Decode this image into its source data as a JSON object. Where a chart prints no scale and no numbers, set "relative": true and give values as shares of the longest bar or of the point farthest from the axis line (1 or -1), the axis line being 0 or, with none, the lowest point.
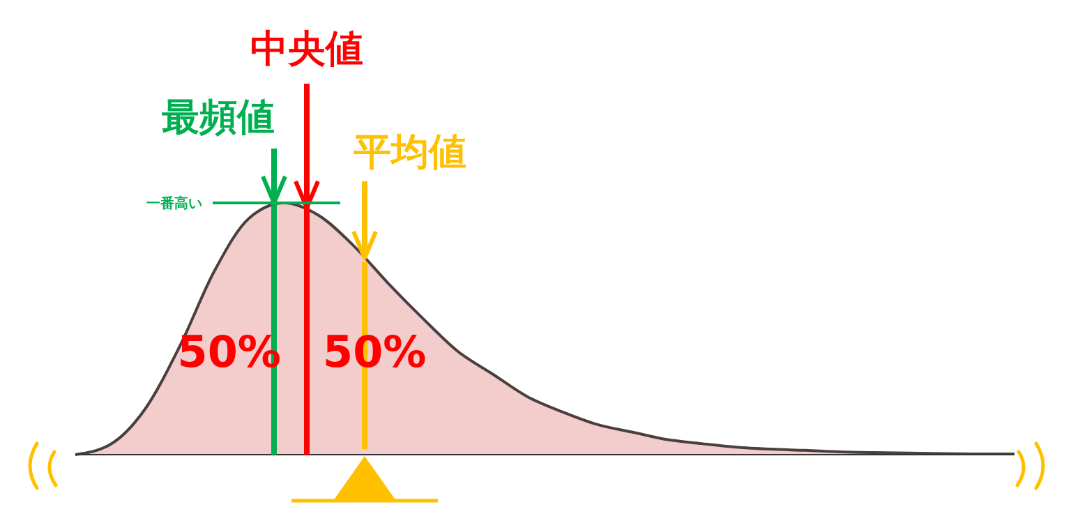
{
  "chart_data": {
    "type": "area",
    "relative": true,
    "color": "#f3cccc",
    "categories": [
      null,
      null,
      null,
      null,
      null,
      null,
      null,
      null,
      null,
      null,
      null,
      null,
      null,
      null,
      null,
      null,
      null,
      null,
      null,
      null,
      null,
      null,
      null,
      null,
      null,
      null,
      null,
      null
    ],
    "values": [
      0,
      0.04,
      0.18,
      0.43,
      0.73,
      0.94,
      1.0,
      0.95,
      0.83,
      0.68,
      0.54,
      0.41,
      0.32,
      0.23,
      0.17,
      0.12,
      0.09,
      0.06,
      0.044,
      0.03,
      0.022,
      0.017,
      0.011,
      0.008,
      0.006,
      0.004,
      0.003,
      0.003
    ],
    "ref_lines": [
      {
        "axis": "y",
        "value": 1,
        "label": "一番高い",
        "color": "#00b050"
      }
    ],
    "annotations": [
      "最頻値",
      "中央値",
      "平均値",
      "50%",
      "50%"
    ]
  }
}
